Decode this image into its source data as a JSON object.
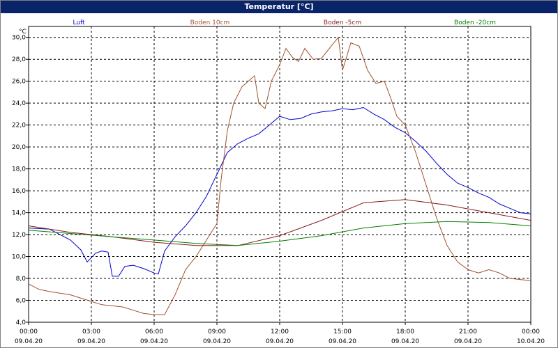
{
  "window": {
    "title": "Temperatur [°C]"
  },
  "chart_data": {
    "type": "line",
    "title": "Temperatur [°C]",
    "ylabel": "°C",
    "ylim": [
      4.0,
      31.0
    ],
    "xlim_hours": [
      0,
      24
    ],
    "grid": true,
    "legend_placement": "top",
    "y_ticks": [
      "4,0",
      "6,0",
      "8,0",
      "10,0",
      "12,0",
      "14,0",
      "16,0",
      "18,0",
      "20,0",
      "22,0",
      "24,0",
      "26,0",
      "28,0",
      "30,0"
    ],
    "x_ticks": [
      {
        "time": "00:00",
        "date": "09.04.20"
      },
      {
        "time": "03:00",
        "date": "09.04.20"
      },
      {
        "time": "06:00",
        "date": "09.04.20"
      },
      {
        "time": "09:00",
        "date": "09.04.20"
      },
      {
        "time": "12:00",
        "date": "09.04.20"
      },
      {
        "time": "15:00",
        "date": "09.04.20"
      },
      {
        "time": "18:00",
        "date": "09.04.20"
      },
      {
        "time": "21:00",
        "date": "09.04.20"
      },
      {
        "time": "00:00",
        "date": "10.04.20"
      }
    ],
    "series": [
      {
        "name": "Luft",
        "color": "#0000cc",
        "points": [
          [
            0,
            12.6
          ],
          [
            1,
            12.5
          ],
          [
            2,
            11.5
          ],
          [
            2.5,
            10.6
          ],
          [
            2.8,
            9.5
          ],
          [
            3.2,
            10.3
          ],
          [
            3.5,
            10.5
          ],
          [
            3.8,
            10.4
          ],
          [
            4.0,
            8.2
          ],
          [
            4.3,
            8.2
          ],
          [
            4.6,
            9.1
          ],
          [
            5.0,
            9.2
          ],
          [
            5.5,
            8.9
          ],
          [
            6.0,
            8.5
          ],
          [
            6.2,
            8.4
          ],
          [
            6.5,
            10.5
          ],
          [
            7,
            11.8
          ],
          [
            7.5,
            12.8
          ],
          [
            8,
            14.0
          ],
          [
            8.5,
            15.5
          ],
          [
            9,
            17.5
          ],
          [
            9.5,
            19.5
          ],
          [
            10,
            20.3
          ],
          [
            10.5,
            20.8
          ],
          [
            11,
            21.2
          ],
          [
            11.5,
            22.0
          ],
          [
            12,
            22.8
          ],
          [
            12.5,
            22.5
          ],
          [
            13,
            22.6
          ],
          [
            13.5,
            23.0
          ],
          [
            14,
            23.2
          ],
          [
            14.5,
            23.3
          ],
          [
            15,
            23.5
          ],
          [
            15.5,
            23.4
          ],
          [
            16,
            23.6
          ],
          [
            16.5,
            23.0
          ],
          [
            17,
            22.5
          ],
          [
            17.5,
            21.8
          ],
          [
            18,
            21.3
          ],
          [
            18.5,
            20.5
          ],
          [
            19,
            19.6
          ],
          [
            19.5,
            18.5
          ],
          [
            20,
            17.5
          ],
          [
            20.5,
            16.7
          ],
          [
            21,
            16.3
          ],
          [
            21.5,
            15.8
          ],
          [
            22,
            15.4
          ],
          [
            22.5,
            14.8
          ],
          [
            23,
            14.4
          ],
          [
            23.5,
            14.0
          ],
          [
            24,
            13.9
          ]
        ]
      },
      {
        "name": "Boden 10cm",
        "color": "#a0522d",
        "points": [
          [
            0,
            7.5
          ],
          [
            0.5,
            7.0
          ],
          [
            1,
            6.8
          ],
          [
            2,
            6.5
          ],
          [
            2.5,
            6.2
          ],
          [
            3,
            5.9
          ],
          [
            3.5,
            5.6
          ],
          [
            4,
            5.5
          ],
          [
            4.5,
            5.4
          ],
          [
            5,
            5.1
          ],
          [
            5.5,
            4.8
          ],
          [
            6,
            4.7
          ],
          [
            6.5,
            4.7
          ],
          [
            7,
            6.5
          ],
          [
            7.5,
            8.8
          ],
          [
            8,
            10.0
          ],
          [
            8.5,
            11.5
          ],
          [
            9,
            13.0
          ],
          [
            9.2,
            17.0
          ],
          [
            9.5,
            21.5
          ],
          [
            9.8,
            24.0
          ],
          [
            10.2,
            25.5
          ],
          [
            10.8,
            26.5
          ],
          [
            11.0,
            24.0
          ],
          [
            11.3,
            23.5
          ],
          [
            11.6,
            26.0
          ],
          [
            12,
            27.5
          ],
          [
            12.3,
            29.0
          ],
          [
            12.6,
            28.2
          ],
          [
            12.9,
            27.8
          ],
          [
            13.2,
            29.0
          ],
          [
            13.6,
            28.0
          ],
          [
            14,
            28.1
          ],
          [
            14.5,
            29.3
          ],
          [
            14.8,
            30.0
          ],
          [
            15.0,
            27.0
          ],
          [
            15.4,
            29.5
          ],
          [
            15.8,
            29.2
          ],
          [
            16.2,
            27.0
          ],
          [
            16.6,
            25.8
          ],
          [
            17,
            26.0
          ],
          [
            17.3,
            24.5
          ],
          [
            17.6,
            22.8
          ],
          [
            18,
            22.0
          ],
          [
            18.5,
            19.5
          ],
          [
            19,
            16.5
          ],
          [
            19.5,
            13.5
          ],
          [
            20,
            11.0
          ],
          [
            20.5,
            9.5
          ],
          [
            21,
            8.8
          ],
          [
            21.5,
            8.5
          ],
          [
            22,
            8.8
          ],
          [
            22.5,
            8.5
          ],
          [
            23,
            8.0
          ],
          [
            23.5,
            7.9
          ],
          [
            24,
            7.8
          ]
        ]
      },
      {
        "name": "Boden -5cm",
        "color": "#8b1a1a",
        "points": [
          [
            0,
            12.8
          ],
          [
            2,
            12.2
          ],
          [
            4,
            11.8
          ],
          [
            6,
            11.3
          ],
          [
            8,
            11.0
          ],
          [
            10,
            11.0
          ],
          [
            12,
            11.9
          ],
          [
            14,
            13.3
          ],
          [
            16,
            14.9
          ],
          [
            18,
            15.2
          ],
          [
            20,
            14.7
          ],
          [
            22,
            14.0
          ],
          [
            24,
            13.3
          ]
        ]
      },
      {
        "name": "Boden -20cm",
        "color": "#008000",
        "points": [
          [
            0,
            12.4
          ],
          [
            2,
            12.1
          ],
          [
            4,
            11.8
          ],
          [
            6,
            11.5
          ],
          [
            8,
            11.2
          ],
          [
            10,
            11.0
          ],
          [
            12,
            11.4
          ],
          [
            14,
            11.9
          ],
          [
            16,
            12.6
          ],
          [
            18,
            13.0
          ],
          [
            20,
            13.2
          ],
          [
            22,
            13.1
          ],
          [
            24,
            12.8
          ]
        ]
      }
    ]
  }
}
